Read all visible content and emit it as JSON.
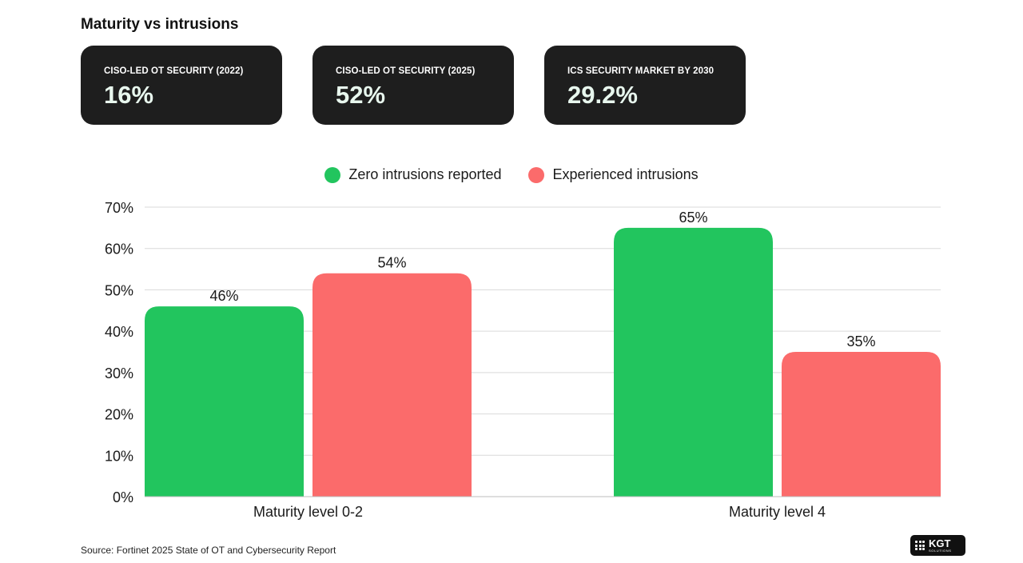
{
  "page": {
    "title": "Maturity vs intrusions",
    "source": "Source: Fortinet 2025 State of OT and Cybersecurity Report"
  },
  "stats": [
    {
      "label": "CISO-LED OT SECURITY (2022)",
      "value": "16%"
    },
    {
      "label": "CISO-LED OT SECURITY (2025)",
      "value": "52%"
    },
    {
      "label": "ICS SECURITY MARKET BY 2030",
      "value": "29.2%"
    }
  ],
  "logo": {
    "text": "KGT",
    "subtext": "SOLUTIONS"
  },
  "colors": {
    "green": "#22c55e",
    "red": "#fb6b6b",
    "card": "#1e1e1e",
    "grid": "#d9d9d9"
  },
  "chart_data": {
    "type": "bar",
    "categories": [
      "Maturity level 0-2",
      "Maturity level 4"
    ],
    "series": [
      {
        "name": "Zero intrusions reported",
        "values": [
          46,
          65
        ],
        "labels": [
          "46%",
          "65%"
        ],
        "color": "#22c55e"
      },
      {
        "name": "Experienced intrusions",
        "values": [
          54,
          35
        ],
        "labels": [
          "54%",
          "35%"
        ],
        "color": "#fb6b6b"
      }
    ],
    "y_ticks": [
      0,
      10,
      20,
      30,
      40,
      50,
      60,
      70
    ],
    "y_tick_labels": [
      "0%",
      "10%",
      "20%",
      "30%",
      "40%",
      "50%",
      "60%",
      "70%"
    ],
    "ylim": [
      0,
      70
    ],
    "grid": true,
    "legend_position": "top-center",
    "title": "",
    "xlabel": "",
    "ylabel": ""
  }
}
